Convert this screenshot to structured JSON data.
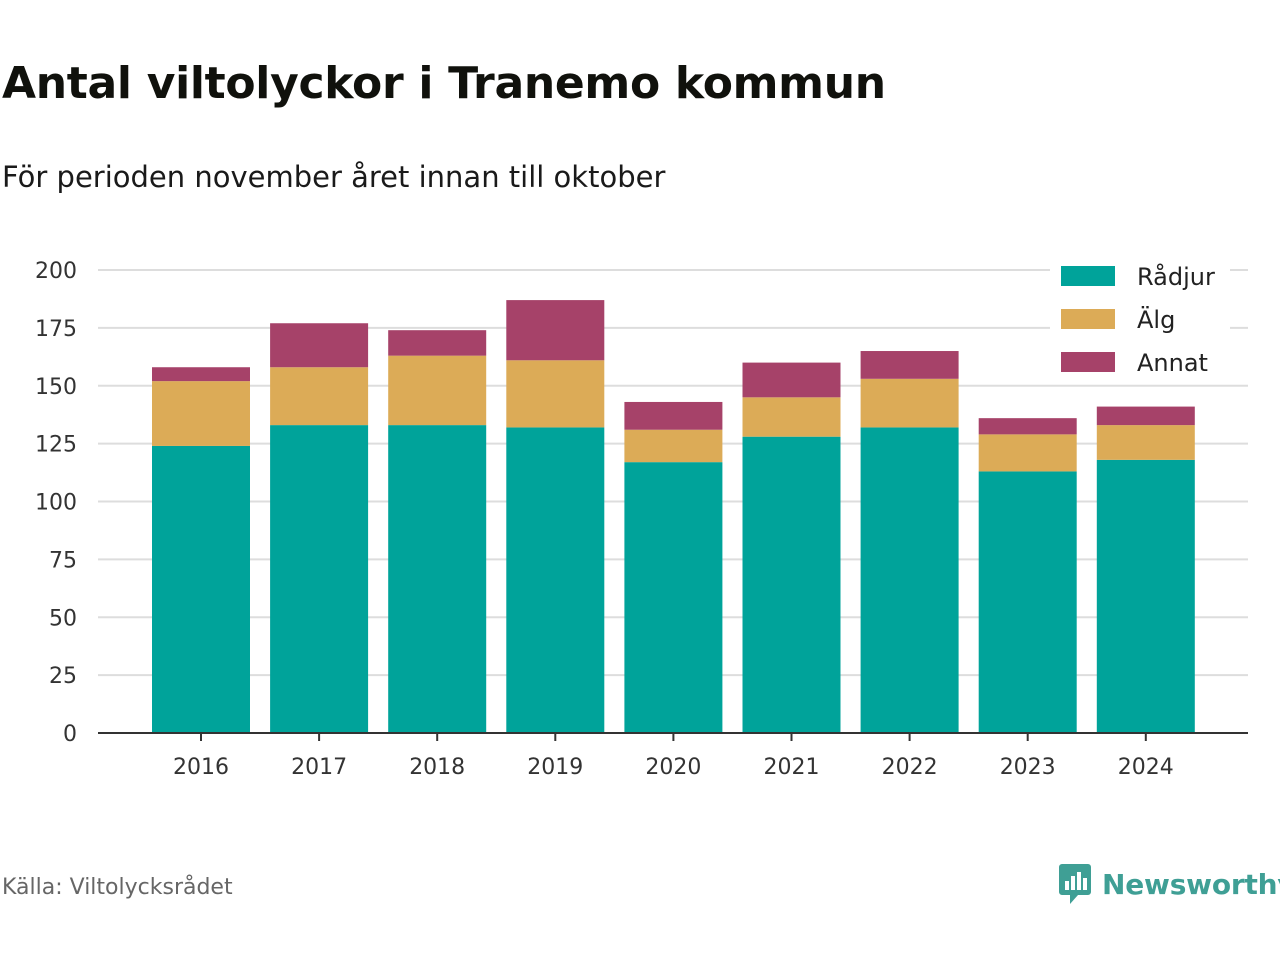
{
  "title": "Antal viltolyckor i Tranemo kommun",
  "subtitle": "För perioden november året innan till oktober",
  "source": "Källa: Viltolycksrådet",
  "brand": {
    "name": "Newsworthy",
    "icon": "newsworthy-logo-icon",
    "color": "#3f9f95"
  },
  "chart_data": {
    "type": "bar",
    "stacked": true,
    "categories": [
      "2016",
      "2017",
      "2018",
      "2019",
      "2020",
      "2021",
      "2022",
      "2023",
      "2024"
    ],
    "series": [
      {
        "name": "Rådjur",
        "color": "#00a39a",
        "values": [
          124,
          133,
          133,
          132,
          117,
          128,
          132,
          113,
          118
        ]
      },
      {
        "name": "Älg",
        "color": "#dcab57",
        "values": [
          28,
          25,
          30,
          29,
          14,
          17,
          21,
          16,
          15
        ]
      },
      {
        "name": "Annat",
        "color": "#a64269",
        "values": [
          6,
          19,
          11,
          26,
          12,
          15,
          12,
          7,
          8
        ]
      }
    ],
    "ylim": [
      0,
      200
    ],
    "yticks": [
      0,
      25,
      50,
      75,
      100,
      125,
      150,
      175,
      200
    ],
    "xlabel": "",
    "ylabel": "",
    "grid": true,
    "legend": "top-right"
  }
}
